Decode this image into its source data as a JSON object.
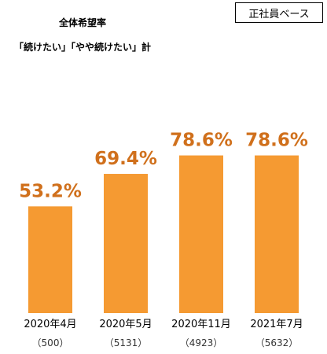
{
  "badge": "正社員ベース",
  "title_line1": "全体希望率",
  "title_line2": "「続けたい」「やや続けたい」計",
  "colors": {
    "bar": "#F59A32",
    "value_label": "#D0701C"
  },
  "chart_data": {
    "type": "bar",
    "title": "全体希望率",
    "subtitle": "「続けたい」「やや続けたい」計",
    "categories": [
      "2020年4月",
      "2020年5月",
      "2020年11月",
      "2021年7月"
    ],
    "sample_sizes": [
      "（500）",
      "（5131）",
      "（4923）",
      "（5632）"
    ],
    "values": [
      53.2,
      69.4,
      78.6,
      78.6
    ],
    "value_labels": [
      "53.2%",
      "69.4%",
      "78.6%",
      "78.6%"
    ],
    "ylim": [
      0,
      100
    ],
    "grid": false,
    "legend": "none"
  }
}
